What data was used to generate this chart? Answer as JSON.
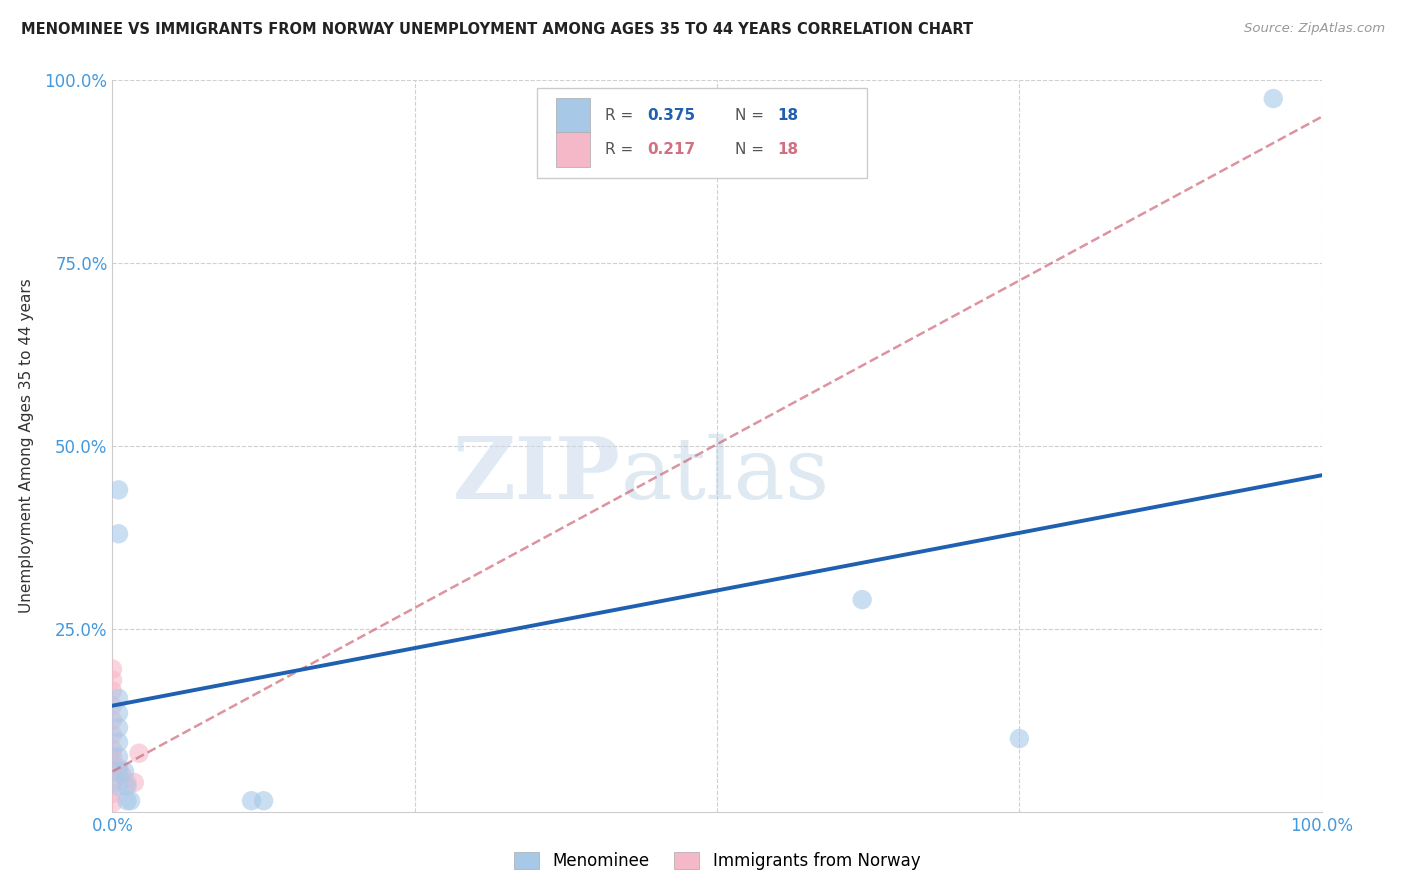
{
  "title": "MENOMINEE VS IMMIGRANTS FROM NORWAY UNEMPLOYMENT AMONG AGES 35 TO 44 YEARS CORRELATION CHART",
  "source": "Source: ZipAtlas.com",
  "ylabel_label": "Unemployment Among Ages 35 to 44 years",
  "xlim": [
    0.0,
    1.0
  ],
  "ylim": [
    0.0,
    1.0
  ],
  "xticks": [
    0.0,
    0.25,
    0.5,
    0.75,
    1.0
  ],
  "xticklabels": [
    "0.0%",
    "",
    "",
    "",
    "100.0%"
  ],
  "yticks": [
    0.0,
    0.25,
    0.5,
    0.75,
    1.0
  ],
  "yticklabels": [
    "",
    "25.0%",
    "50.0%",
    "75.0%",
    "100.0%"
  ],
  "legend_r_blue": "0.375",
  "legend_n_blue": "18",
  "legend_r_pink": "0.217",
  "legend_n_pink": "18",
  "legend_label_blue": "Menominee",
  "legend_label_pink": "Immigrants from Norway",
  "watermark_zip": "ZIP",
  "watermark_atlas": "atlas",
  "blue_scatter": [
    [
      0.005,
      0.44
    ],
    [
      0.005,
      0.38
    ],
    [
      0.005,
      0.155
    ],
    [
      0.005,
      0.135
    ],
    [
      0.005,
      0.115
    ],
    [
      0.005,
      0.095
    ],
    [
      0.005,
      0.075
    ],
    [
      0.005,
      0.055
    ],
    [
      0.005,
      0.035
    ],
    [
      0.01,
      0.055
    ],
    [
      0.012,
      0.035
    ],
    [
      0.012,
      0.015
    ],
    [
      0.015,
      0.015
    ],
    [
      0.115,
      0.015
    ],
    [
      0.125,
      0.015
    ],
    [
      0.62,
      0.29
    ],
    [
      0.75,
      0.1
    ],
    [
      0.96,
      0.975
    ]
  ],
  "pink_scatter": [
    [
      0.0,
      0.195
    ],
    [
      0.0,
      0.18
    ],
    [
      0.0,
      0.165
    ],
    [
      0.0,
      0.145
    ],
    [
      0.0,
      0.125
    ],
    [
      0.0,
      0.105
    ],
    [
      0.0,
      0.085
    ],
    [
      0.0,
      0.075
    ],
    [
      0.0,
      0.065
    ],
    [
      0.0,
      0.055
    ],
    [
      0.0,
      0.04
    ],
    [
      0.0,
      0.025
    ],
    [
      0.0,
      0.012
    ],
    [
      0.005,
      0.06
    ],
    [
      0.008,
      0.05
    ],
    [
      0.012,
      0.04
    ],
    [
      0.018,
      0.04
    ],
    [
      0.022,
      0.08
    ]
  ],
  "blue_line_x": [
    0.0,
    1.0
  ],
  "blue_line_y": [
    0.145,
    0.46
  ],
  "pink_line_x": [
    0.0,
    1.0
  ],
  "pink_line_y": [
    0.055,
    0.95
  ],
  "background_color": "#ffffff",
  "grid_color": "#d0d0d0",
  "blue_color": "#a8c8e8",
  "pink_color": "#f5b8c8",
  "blue_line_color": "#2060b0",
  "pink_line_color": "#d07080",
  "title_color": "#222222",
  "axis_tick_color": "#4499dd",
  "marker_size": 14
}
